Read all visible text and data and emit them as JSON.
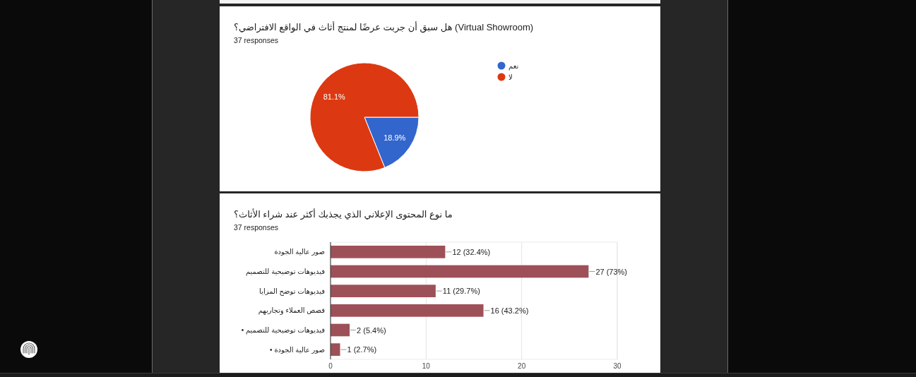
{
  "chart_data": [
    {
      "type": "pie",
      "title": "هل سبق أن جربت عرضًا لمنتج أثاث في الواقع الافتراضي؟ (Virtual Showroom)",
      "subtitle": "37 responses",
      "categories": [
        "نعم",
        "لا"
      ],
      "values": [
        18.9,
        81.1
      ],
      "colors": [
        "#3366cc",
        "#dc3912"
      ],
      "value_labels": [
        "18.9%",
        "81.1%"
      ],
      "legend": "right"
    },
    {
      "type": "bar",
      "orientation": "horizontal",
      "title": "ما نوع المحتوى الإعلاني الذي يجذبك أكثر عند شراء الأثاث؟",
      "subtitle": "37 responses",
      "categories": [
        "صور عالية الجودة",
        "فيديوهات توضيحية للتصميم",
        "فيديوهات توضح المزايا",
        "قصص العملاء وتجاربهم",
        "• فيديوهات توضيحية للتصميم",
        "• صور عالية الجودة"
      ],
      "values": [
        12,
        27,
        11,
        16,
        2,
        1
      ],
      "color": "#9e5058",
      "value_labels": [
        "12 (32.4%)",
        "27 (73%)",
        "11 (29.7%)",
        "16 (43.2%)",
        "2 (5.4%)",
        "1 (2.7%)"
      ],
      "xlim": [
        0,
        30
      ],
      "xticks": [
        0,
        10,
        20,
        30
      ],
      "grid": "x"
    }
  ]
}
